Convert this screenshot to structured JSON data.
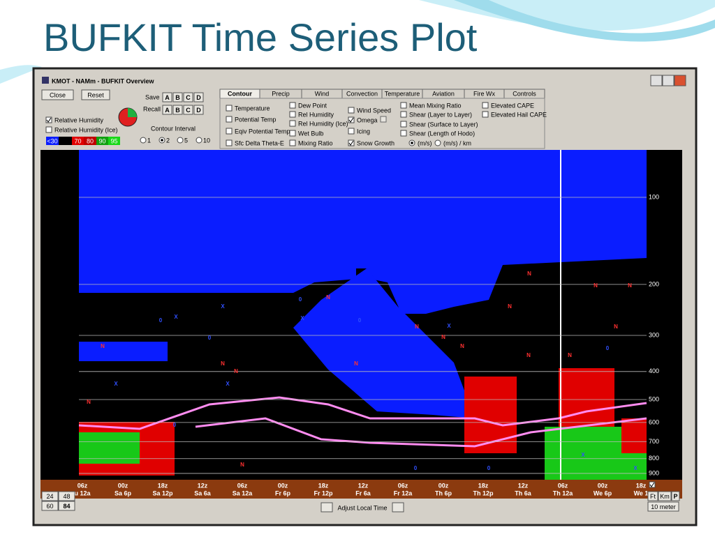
{
  "slide": {
    "title": "BUFKIT Time Series Plot"
  },
  "window": {
    "title": "KMOT - NAMm - BUFKIT Overview"
  },
  "toolbar": {
    "close": "Close",
    "reset": "Reset",
    "save": "Save",
    "recall": "Recall",
    "slots": [
      "A",
      "B",
      "C",
      "D"
    ],
    "checkboxes": [
      "Relative Humidity",
      "Relative Humidity (Ice)"
    ],
    "legend": [
      "<30",
      "70",
      "80",
      "90",
      "95"
    ],
    "contour_interval": "Contour Interval",
    "intervals": [
      "1",
      "2",
      "5",
      "10"
    ]
  },
  "tabs": [
    "Contour",
    "Precip",
    "Wind",
    "Convection",
    "Temperature",
    "Aviation",
    "Fire Wx",
    "Controls"
  ],
  "options": [
    [
      "Temperature",
      "Potential Temp",
      "Eqiv Potential Temp",
      "Sfc Delta Theta-E"
    ],
    [
      "Dew Point",
      "Rel Humidity",
      "Rel Humidity (Ice)",
      "Wet Bulb",
      "Mixing Ratio"
    ],
    [
      "Wind Speed",
      "Omega",
      "Icing",
      "Snow Growth"
    ],
    [
      "Mean Mixing Ratio",
      "Shear (Layer to Layer)",
      "Shear (Surface to Layer)",
      "Shear (Length of Hodo)"
    ],
    [
      "Elevated CAPE",
      "Elevated Hail CAPE"
    ]
  ],
  "shear_units": [
    "(m/s)",
    "(m/s) / km"
  ],
  "plot": {
    "pressure_levels": [
      100,
      200,
      300,
      400,
      500,
      600,
      700,
      800,
      900
    ],
    "markers": [
      "N",
      "X",
      "0"
    ],
    "time_utc": [
      "06z",
      "00z",
      "18z",
      "12z",
      "06z",
      "00z",
      "18z",
      "12z",
      "06z",
      "00z",
      "18z",
      "12z",
      "06z",
      "00z",
      "18z"
    ],
    "time_local": [
      "u 12a",
      "Sa 6p",
      "Sa 12p",
      "Sa 6a",
      "Sa 12a",
      "Fr 6p",
      "Fr 12p",
      "Fr 6a",
      "Fr 12a",
      "Th 6p",
      "Th 12p",
      "Th 6a",
      "Th 12a",
      "We 6p",
      "We 1"
    ]
  },
  "bottom": {
    "hours": [
      "24",
      "48",
      "60",
      "84"
    ],
    "adjust": "Adjust Local Time",
    "units": [
      "Ft",
      "Km",
      "P"
    ],
    "height": "10 meter"
  }
}
